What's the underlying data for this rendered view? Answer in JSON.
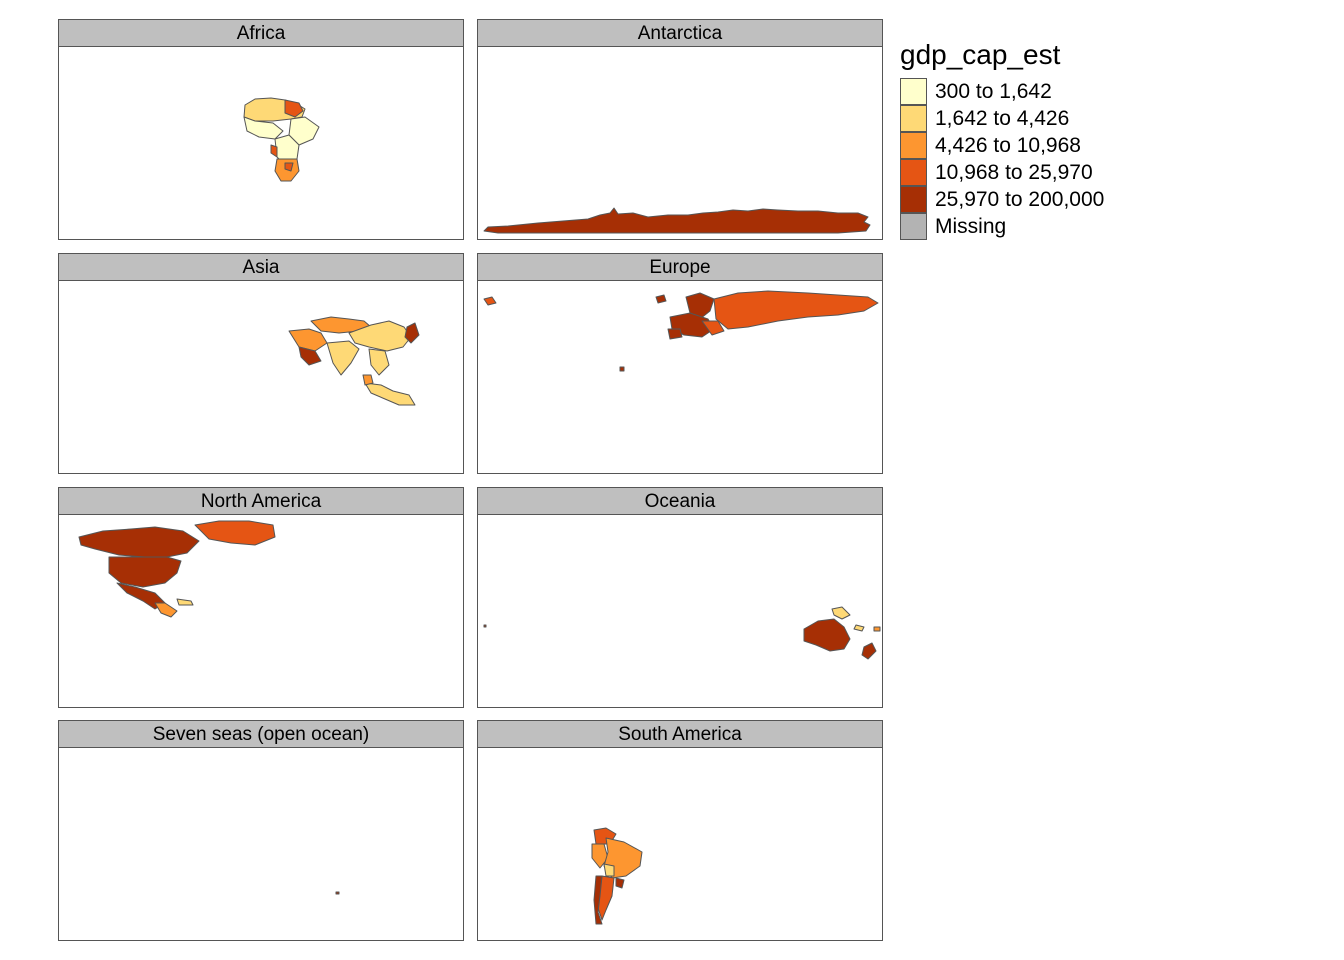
{
  "legend": {
    "title": "gdp_cap_est",
    "items": [
      {
        "label": "300 to 1,642",
        "color": "#ffffcc"
      },
      {
        "label": "1,642 to 4,426",
        "color": "#fed976"
      },
      {
        "label": "4,426 to 10,968",
        "color": "#fd9630"
      },
      {
        "label": "10,968 to 25,970",
        "color": "#e55514"
      },
      {
        "label": "25,970 to 200,000",
        "color": "#a62f05"
      },
      {
        "label": "Missing",
        "color": "#b3b3b3"
      }
    ]
  },
  "panels": [
    {
      "name": "Africa"
    },
    {
      "name": "Antarctica"
    },
    {
      "name": "Asia"
    },
    {
      "name": "Europe"
    },
    {
      "name": "North America"
    },
    {
      "name": "Oceania"
    },
    {
      "name": "Seven seas (open ocean)"
    },
    {
      "name": "South America"
    }
  ]
}
